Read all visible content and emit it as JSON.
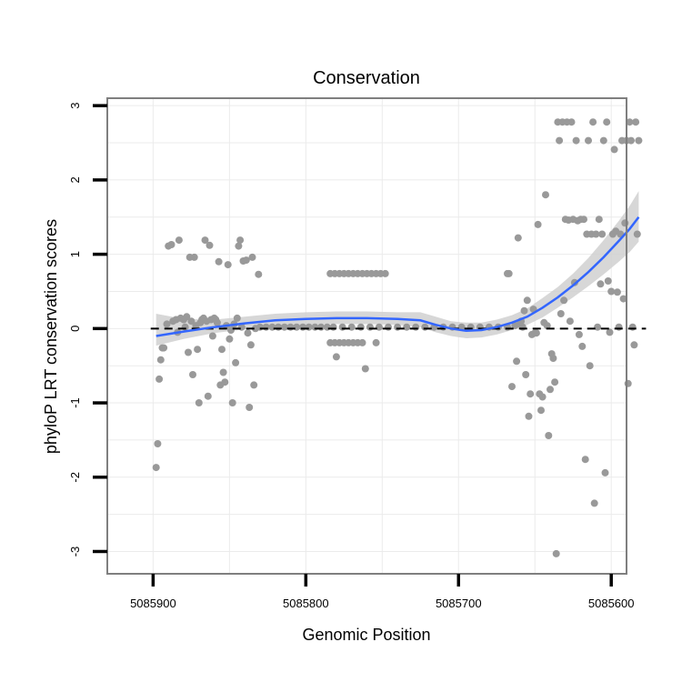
{
  "chart_data": {
    "type": "scatter",
    "title": "Conservation",
    "xlabel": "Genomic Position",
    "ylabel": "phyloP LRT conservation scores",
    "x_reversed": true,
    "xlim": [
      5085930,
      5085590
    ],
    "ylim": [
      -3.3,
      3.1
    ],
    "x_ticks": [
      {
        "value": 5085900,
        "label": "5085900"
      },
      {
        "value": 5085800,
        "label": "5085800"
      },
      {
        "value": 5085700,
        "label": "5085700"
      },
      {
        "value": 5085600,
        "label": "5085600"
      }
    ],
    "y_ticks": [
      {
        "value": 3,
        "label": "3"
      },
      {
        "value": 2,
        "label": "2"
      },
      {
        "value": 1,
        "label": "1"
      },
      {
        "value": 0,
        "label": "0"
      },
      {
        "value": -1,
        "label": "-1"
      },
      {
        "value": -2,
        "label": "-2"
      },
      {
        "value": -3,
        "label": "-3"
      }
    ],
    "grid": true,
    "reference_line": {
      "y": 0,
      "style": "dashed"
    },
    "colors": {
      "points": "#999999",
      "smooth_line": "#3366ff",
      "confidence_band": "#d0d0d0",
      "panel_border": "#7f7f7f",
      "grid": "#ebebeb"
    },
    "points": [
      {
        "x": 5085898,
        "y": -1.87
      },
      {
        "x": 5085897,
        "y": -1.55
      },
      {
        "x": 5085896,
        "y": -0.68
      },
      {
        "x": 5085895,
        "y": -0.42
      },
      {
        "x": 5085894,
        "y": -0.26
      },
      {
        "x": 5085893,
        "y": -0.26
      },
      {
        "x": 5085891,
        "y": 0.06
      },
      {
        "x": 5085890,
        "y": 1.11
      },
      {
        "x": 5085888,
        "y": 1.13
      },
      {
        "x": 5085887,
        "y": 0.1
      },
      {
        "x": 5085885,
        "y": 0.12
      },
      {
        "x": 5085884,
        "y": -0.05
      },
      {
        "x": 5085883,
        "y": 1.19
      },
      {
        "x": 5085882,
        "y": 0.14
      },
      {
        "x": 5085880,
        "y": 0.12
      },
      {
        "x": 5085879,
        "y": 0.02
      },
      {
        "x": 5085878,
        "y": 0.16
      },
      {
        "x": 5085877,
        "y": -0.32
      },
      {
        "x": 5085876,
        "y": 0.96
      },
      {
        "x": 5085875,
        "y": 0.1
      },
      {
        "x": 5085874,
        "y": -0.62
      },
      {
        "x": 5085873,
        "y": 0.96
      },
      {
        "x": 5085872,
        "y": 0.04
      },
      {
        "x": 5085871,
        "y": -0.28
      },
      {
        "x": 5085870,
        "y": -1.0
      },
      {
        "x": 5085869,
        "y": 0.08
      },
      {
        "x": 5085868,
        "y": 0.12
      },
      {
        "x": 5085867,
        "y": 0.14
      },
      {
        "x": 5085866,
        "y": 1.19
      },
      {
        "x": 5085865,
        "y": 0.1
      },
      {
        "x": 5085864,
        "y": -0.91
      },
      {
        "x": 5085863,
        "y": 1.12
      },
      {
        "x": 5085862,
        "y": 0.12
      },
      {
        "x": 5085861,
        "y": -0.1
      },
      {
        "x": 5085860,
        "y": 0.14
      },
      {
        "x": 5085859,
        "y": 0.12
      },
      {
        "x": 5085858,
        "y": 0.08
      },
      {
        "x": 5085857,
        "y": 0.9
      },
      {
        "x": 5085856,
        "y": -0.76
      },
      {
        "x": 5085855,
        "y": -0.28
      },
      {
        "x": 5085854,
        "y": -0.59
      },
      {
        "x": 5085853,
        "y": -0.72
      },
      {
        "x": 5085852,
        "y": 0.04
      },
      {
        "x": 5085851,
        "y": 0.86
      },
      {
        "x": 5085850,
        "y": -0.14
      },
      {
        "x": 5085849,
        "y": -0.02
      },
      {
        "x": 5085848,
        "y": -1.0
      },
      {
        "x": 5085847,
        "y": 0.06
      },
      {
        "x": 5085846,
        "y": -0.46
      },
      {
        "x": 5085845,
        "y": 0.14
      },
      {
        "x": 5085844,
        "y": 1.11
      },
      {
        "x": 5085843,
        "y": 1.19
      },
      {
        "x": 5085842,
        "y": 0.02
      },
      {
        "x": 5085841,
        "y": 0.91
      },
      {
        "x": 5085839,
        "y": 0.92
      },
      {
        "x": 5085838,
        "y": -0.06
      },
      {
        "x": 5085837,
        "y": -1.06
      },
      {
        "x": 5085836,
        "y": -0.22
      },
      {
        "x": 5085835,
        "y": 0.96
      },
      {
        "x": 5085834,
        "y": -0.76
      },
      {
        "x": 5085833,
        "y": 0.0
      },
      {
        "x": 5085831,
        "y": 0.73
      },
      {
        "x": 5085830,
        "y": 0.02
      },
      {
        "x": 5085826,
        "y": 0.02
      },
      {
        "x": 5085822,
        "y": 0.02
      },
      {
        "x": 5085818,
        "y": 0.02
      },
      {
        "x": 5085814,
        "y": 0.02
      },
      {
        "x": 5085810,
        "y": 0.02
      },
      {
        "x": 5085806,
        "y": 0.02
      },
      {
        "x": 5085802,
        "y": 0.02
      },
      {
        "x": 5085798,
        "y": 0.02
      },
      {
        "x": 5085794,
        "y": 0.02
      },
      {
        "x": 5085790,
        "y": 0.02
      },
      {
        "x": 5085786,
        "y": 0.02
      },
      {
        "x": 5085784,
        "y": 0.74
      },
      {
        "x": 5085784,
        "y": -0.19
      },
      {
        "x": 5085782,
        "y": 0.02
      },
      {
        "x": 5085781,
        "y": 0.74
      },
      {
        "x": 5085781,
        "y": -0.19
      },
      {
        "x": 5085780,
        "y": -0.38
      },
      {
        "x": 5085778,
        "y": 0.74
      },
      {
        "x": 5085778,
        "y": -0.19
      },
      {
        "x": 5085776,
        "y": 0.02
      },
      {
        "x": 5085775,
        "y": 0.74
      },
      {
        "x": 5085775,
        "y": -0.19
      },
      {
        "x": 5085772,
        "y": 0.74
      },
      {
        "x": 5085772,
        "y": -0.19
      },
      {
        "x": 5085770,
        "y": 0.02
      },
      {
        "x": 5085769,
        "y": 0.74
      },
      {
        "x": 5085769,
        "y": -0.19
      },
      {
        "x": 5085766,
        "y": 0.74
      },
      {
        "x": 5085766,
        "y": -0.19
      },
      {
        "x": 5085764,
        "y": 0.02
      },
      {
        "x": 5085763,
        "y": 0.74
      },
      {
        "x": 5085763,
        "y": -0.19
      },
      {
        "x": 5085761,
        "y": -0.54
      },
      {
        "x": 5085760,
        "y": 0.74
      },
      {
        "x": 5085758,
        "y": 0.02
      },
      {
        "x": 5085757,
        "y": 0.74
      },
      {
        "x": 5085754,
        "y": 0.74
      },
      {
        "x": 5085754,
        "y": -0.19
      },
      {
        "x": 5085752,
        "y": 0.02
      },
      {
        "x": 5085751,
        "y": 0.74
      },
      {
        "x": 5085748,
        "y": 0.74
      },
      {
        "x": 5085746,
        "y": 0.02
      },
      {
        "x": 5085740,
        "y": 0.02
      },
      {
        "x": 5085734,
        "y": 0.02
      },
      {
        "x": 5085728,
        "y": 0.02
      },
      {
        "x": 5085722,
        "y": 0.02
      },
      {
        "x": 5085716,
        "y": 0.02
      },
      {
        "x": 5085710,
        "y": 0.02
      },
      {
        "x": 5085704,
        "y": 0.02
      },
      {
        "x": 5085698,
        "y": 0.02
      },
      {
        "x": 5085692,
        "y": 0.02
      },
      {
        "x": 5085686,
        "y": 0.02
      },
      {
        "x": 5085680,
        "y": 0.02
      },
      {
        "x": 5085674,
        "y": 0.02
      },
      {
        "x": 5085668,
        "y": 0.02
      },
      {
        "x": 5085668,
        "y": 0.74
      },
      {
        "x": 5085667,
        "y": 0.74
      },
      {
        "x": 5085665,
        "y": -0.78
      },
      {
        "x": 5085663,
        "y": 0.04
      },
      {
        "x": 5085662,
        "y": -0.44
      },
      {
        "x": 5085661,
        "y": 1.22
      },
      {
        "x": 5085660,
        "y": 0.06
      },
      {
        "x": 5085659,
        "y": 0.1
      },
      {
        "x": 5085658,
        "y": 0.02
      },
      {
        "x": 5085657,
        "y": 0.24
      },
      {
        "x": 5085656,
        "y": -0.62
      },
      {
        "x": 5085655,
        "y": 0.38
      },
      {
        "x": 5085654,
        "y": -1.18
      },
      {
        "x": 5085653,
        "y": -0.88
      },
      {
        "x": 5085652,
        "y": -0.08
      },
      {
        "x": 5085651,
        "y": 0.26
      },
      {
        "x": 5085650,
        "y": -0.06
      },
      {
        "x": 5085649,
        "y": -0.06
      },
      {
        "x": 5085648,
        "y": 1.4
      },
      {
        "x": 5085647,
        "y": -0.88
      },
      {
        "x": 5085646,
        "y": -1.1
      },
      {
        "x": 5085645,
        "y": -0.92
      },
      {
        "x": 5085644,
        "y": 0.08
      },
      {
        "x": 5085643,
        "y": 1.8
      },
      {
        "x": 5085642,
        "y": 0.04
      },
      {
        "x": 5085641,
        "y": -1.44
      },
      {
        "x": 5085640,
        "y": -0.82
      },
      {
        "x": 5085639,
        "y": -0.34
      },
      {
        "x": 5085638,
        "y": -0.4
      },
      {
        "x": 5085637,
        "y": -0.72
      },
      {
        "x": 5085636,
        "y": -3.03
      },
      {
        "x": 5085635,
        "y": 2.78
      },
      {
        "x": 5085634,
        "y": 2.53
      },
      {
        "x": 5085633,
        "y": 0.2
      },
      {
        "x": 5085632,
        "y": 2.78
      },
      {
        "x": 5085631,
        "y": 0.38
      },
      {
        "x": 5085630,
        "y": 1.47
      },
      {
        "x": 5085629,
        "y": 2.78
      },
      {
        "x": 5085628,
        "y": 1.46
      },
      {
        "x": 5085627,
        "y": 0.1
      },
      {
        "x": 5085626,
        "y": 2.78
      },
      {
        "x": 5085625,
        "y": 1.47
      },
      {
        "x": 5085624,
        "y": 0.62
      },
      {
        "x": 5085623,
        "y": 2.53
      },
      {
        "x": 5085622,
        "y": 1.45
      },
      {
        "x": 5085621,
        "y": -0.08
      },
      {
        "x": 5085620,
        "y": 1.47
      },
      {
        "x": 5085619,
        "y": -0.24
      },
      {
        "x": 5085618,
        "y": 1.47
      },
      {
        "x": 5085617,
        "y": -1.76
      },
      {
        "x": 5085616,
        "y": 1.27
      },
      {
        "x": 5085615,
        "y": 2.53
      },
      {
        "x": 5085614,
        "y": -0.5
      },
      {
        "x": 5085613,
        "y": 1.27
      },
      {
        "x": 5085612,
        "y": 2.78
      },
      {
        "x": 5085611,
        "y": -2.35
      },
      {
        "x": 5085610,
        "y": 1.27
      },
      {
        "x": 5085609,
        "y": 0.02
      },
      {
        "x": 5085608,
        "y": 1.47
      },
      {
        "x": 5085607,
        "y": 0.6
      },
      {
        "x": 5085606,
        "y": 1.27
      },
      {
        "x": 5085605,
        "y": 2.53
      },
      {
        "x": 5085604,
        "y": -1.94
      },
      {
        "x": 5085603,
        "y": 2.78
      },
      {
        "x": 5085602,
        "y": 0.64
      },
      {
        "x": 5085601,
        "y": -0.05
      },
      {
        "x": 5085600,
        "y": 0.5
      },
      {
        "x": 5085599,
        "y": 1.27
      },
      {
        "x": 5085598,
        "y": 2.41
      },
      {
        "x": 5085597,
        "y": 1.31
      },
      {
        "x": 5085596,
        "y": 0.49
      },
      {
        "x": 5085595,
        "y": 0.02
      },
      {
        "x": 5085594,
        "y": 1.27
      },
      {
        "x": 5085593,
        "y": 2.53
      },
      {
        "x": 5085592,
        "y": 0.4
      },
      {
        "x": 5085591,
        "y": 1.42
      },
      {
        "x": 5085590,
        "y": 2.53
      },
      {
        "x": 5085589,
        "y": -0.74
      },
      {
        "x": 5085588,
        "y": 2.78
      },
      {
        "x": 5085587,
        "y": 2.53
      },
      {
        "x": 5085586,
        "y": 0.02
      },
      {
        "x": 5085585,
        "y": -0.22
      },
      {
        "x": 5085584,
        "y": 2.78
      },
      {
        "x": 5085583,
        "y": 1.27
      },
      {
        "x": 5085582,
        "y": 2.53
      }
    ],
    "smooth": {
      "x": [
        5085898,
        5085880,
        5085860,
        5085840,
        5085820,
        5085800,
        5085780,
        5085760,
        5085740,
        5085725,
        5085715,
        5085705,
        5085695,
        5085685,
        5085675,
        5085665,
        5085655,
        5085645,
        5085635,
        5085625,
        5085615,
        5085605,
        5085595,
        5085588,
        5085582
      ],
      "y": [
        -0.1,
        -0.04,
        0.02,
        0.07,
        0.11,
        0.13,
        0.14,
        0.14,
        0.13,
        0.11,
        0.05,
        0.0,
        -0.03,
        -0.02,
        0.02,
        0.08,
        0.16,
        0.28,
        0.42,
        0.58,
        0.76,
        0.96,
        1.18,
        1.34,
        1.5
      ],
      "lower": [
        -0.23,
        -0.14,
        -0.06,
        -0.01,
        0.03,
        0.05,
        0.06,
        0.06,
        0.05,
        0.02,
        -0.05,
        -0.1,
        -0.13,
        -0.12,
        -0.08,
        -0.02,
        0.05,
        0.15,
        0.28,
        0.42,
        0.57,
        0.73,
        0.9,
        1.03,
        1.17
      ],
      "upper": [
        0.2,
        0.13,
        0.12,
        0.16,
        0.2,
        0.22,
        0.23,
        0.23,
        0.22,
        0.22,
        0.16,
        0.1,
        0.08,
        0.08,
        0.12,
        0.18,
        0.27,
        0.41,
        0.56,
        0.74,
        0.95,
        1.19,
        1.45,
        1.65,
        1.85
      ]
    }
  }
}
